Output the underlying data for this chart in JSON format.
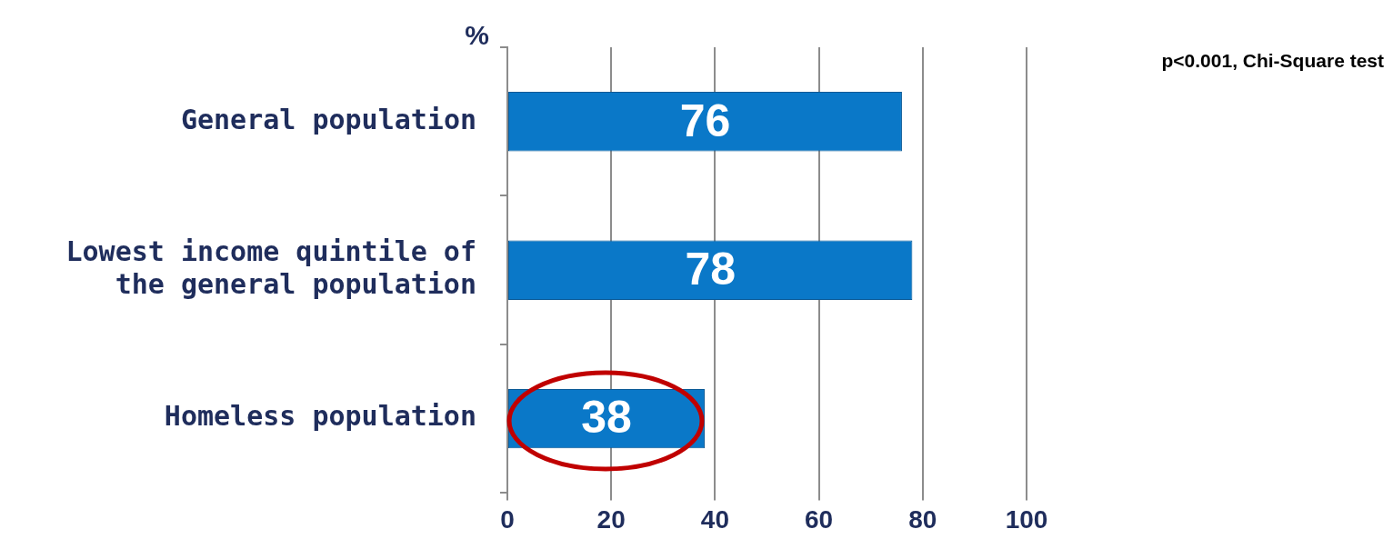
{
  "chart_data": {
    "type": "bar",
    "orientation": "horizontal",
    "xlabel": "%",
    "categories": [
      "General population",
      "Lowest income quintile of the general population",
      "Homeless population"
    ],
    "values": [
      76,
      78,
      38
    ],
    "color": "#0a78c8",
    "xlim": [
      0,
      100
    ],
    "xticks": [
      0,
      20,
      40,
      60,
      80,
      100
    ],
    "grid": "x",
    "data_labels": true,
    "legend": false,
    "annotations": [
      "p<0.001, Chi-Square test"
    ]
  }
}
